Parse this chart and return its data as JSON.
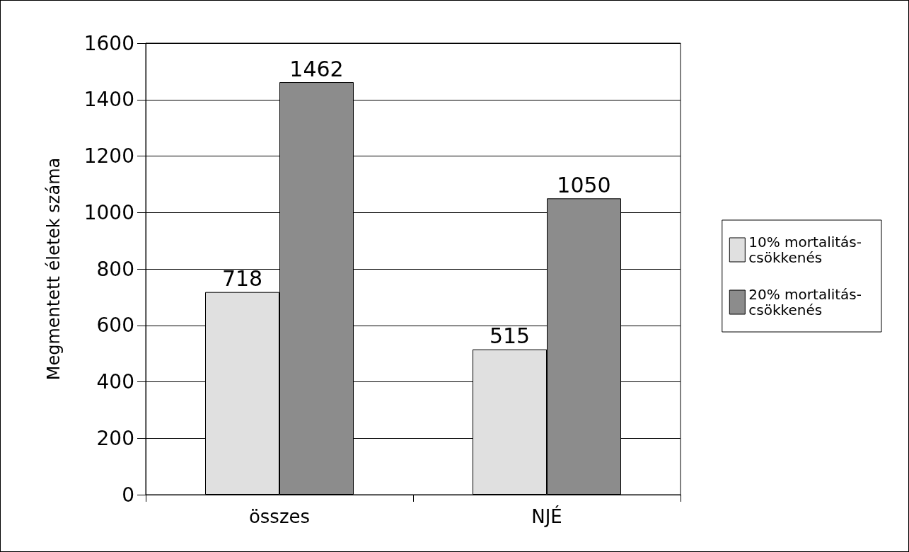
{
  "chart_data": {
    "type": "bar",
    "ylabel": "Megmentett életek száma",
    "categories": [
      "összes",
      "NJÉ"
    ],
    "series": [
      {
        "name": "10% mortalitás-csökkenés",
        "color": "#e0e0e0",
        "values": [
          718,
          515
        ]
      },
      {
        "name": "20% mortalitás-csökkenés",
        "color": "#8c8c8c",
        "values": [
          1462,
          1050
        ]
      }
    ],
    "ylim": [
      0,
      1600
    ],
    "yticks": [
      0,
      200,
      400,
      600,
      800,
      1000,
      1200,
      1400,
      1600
    ],
    "grid": "y",
    "legend": "right",
    "data_labels": true
  }
}
